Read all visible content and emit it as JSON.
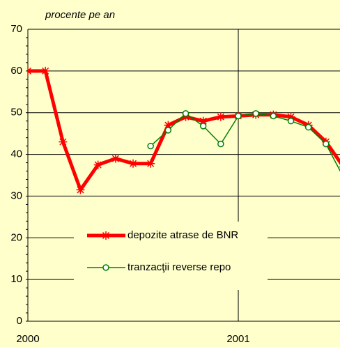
{
  "chart_data": {
    "type": "line",
    "subtitle": "procente pe an",
    "x": [
      0,
      1,
      2,
      3,
      4,
      5,
      6,
      7,
      8,
      9,
      10,
      11,
      12,
      13,
      14,
      15,
      16,
      17,
      18
    ],
    "series": [
      {
        "name": "depozite atrase de BNR",
        "color": "#ff0000",
        "values": [
          60,
          60,
          43,
          31.5,
          37.5,
          39,
          37.8,
          37.8,
          47,
          49,
          48,
          49,
          49.2,
          49.5,
          49.5,
          49,
          47,
          43,
          37
        ]
      },
      {
        "name": "tranzacţii reverse repo",
        "color": "#008000",
        "values": [
          null,
          null,
          null,
          null,
          null,
          null,
          null,
          42,
          45.8,
          49.8,
          46.8,
          42.5,
          49.2,
          49.8,
          49.2,
          48,
          46.5,
          42.5,
          34.5
        ]
      }
    ],
    "xlim": [
      0,
      17.8
    ],
    "xticks": [
      {
        "value": 0,
        "label": "2000"
      },
      {
        "value": 12,
        "label": "2001"
      }
    ],
    "ylim": [
      0,
      70
    ],
    "yticks": [
      0,
      10,
      20,
      30,
      40,
      50,
      60,
      70
    ],
    "grid": true
  }
}
